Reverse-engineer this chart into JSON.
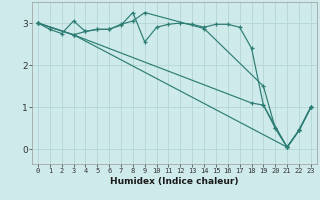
{
  "xlabel": "Humidex (Indice chaleur)",
  "background_color": "#ceeaea",
  "grid_color": "#b8d8d8",
  "line_color": "#2d7d74",
  "x_ticks": [
    0,
    1,
    2,
    3,
    4,
    5,
    6,
    7,
    8,
    9,
    10,
    11,
    12,
    13,
    14,
    15,
    16,
    17,
    18,
    19,
    20,
    21,
    22,
    23
  ],
  "y_ticks": [
    0,
    1,
    2,
    3
  ],
  "xlim": [
    -0.5,
    23.5
  ],
  "ylim": [
    -0.35,
    3.5
  ],
  "series": [
    {
      "x": [
        0,
        1,
        2,
        3,
        4,
        5,
        6,
        7,
        8,
        9,
        10,
        11,
        12,
        13,
        14,
        15,
        16,
        17,
        18,
        19,
        20,
        21,
        22,
        23
      ],
      "y": [
        3.0,
        2.85,
        2.75,
        3.05,
        2.8,
        2.85,
        2.85,
        2.95,
        3.25,
        2.55,
        2.9,
        2.97,
        3.0,
        2.97,
        2.9,
        2.97,
        2.97,
        2.9,
        2.4,
        1.05,
        0.5,
        0.05,
        0.45,
        1.0
      ]
    },
    {
      "x": [
        0,
        3,
        4,
        5,
        6,
        7,
        8,
        9,
        14,
        19,
        20,
        21,
        22,
        23
      ],
      "y": [
        3.0,
        2.72,
        2.8,
        2.85,
        2.85,
        2.97,
        3.05,
        3.25,
        2.87,
        1.5,
        0.5,
        0.05,
        0.45,
        1.0
      ]
    },
    {
      "x": [
        0,
        3,
        21,
        22,
        23
      ],
      "y": [
        3.0,
        2.72,
        0.05,
        0.45,
        1.0
      ]
    },
    {
      "x": [
        0,
        3,
        18,
        19,
        21,
        22,
        23
      ],
      "y": [
        3.0,
        2.72,
        1.1,
        1.05,
        0.05,
        0.45,
        1.0
      ]
    }
  ]
}
